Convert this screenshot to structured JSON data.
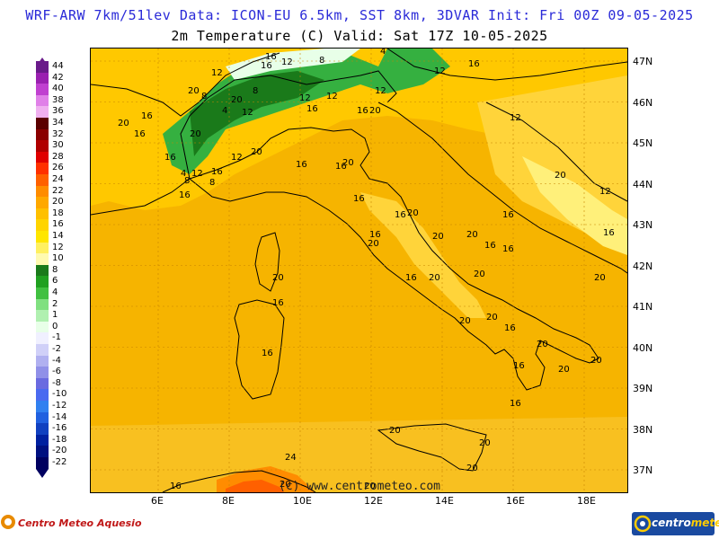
{
  "header": {
    "line1": "WRF-ARW 7km/51lev  Data: ICON-EU 6.5km, SST 8km, 3DVAR  Init: Fri 00Z 09-05-2025",
    "line2": "2m Temperature (C)  Valid: Sat 17Z 10-05-2025"
  },
  "legend": {
    "levels": [
      {
        "label": "44",
        "color": "#6a1a8a"
      },
      {
        "label": "42",
        "color": "#9a20b0"
      },
      {
        "label": "40",
        "color": "#c040d0"
      },
      {
        "label": "38",
        "color": "#e080e8"
      },
      {
        "label": "36",
        "color": "#f0b0f0"
      },
      {
        "label": "34",
        "color": "#5a0000"
      },
      {
        "label": "32",
        "color": "#8a0000"
      },
      {
        "label": "30",
        "color": "#b00000"
      },
      {
        "label": "28",
        "color": "#e00000"
      },
      {
        "label": "26",
        "color": "#ff3000"
      },
      {
        "label": "24",
        "color": "#ff6000"
      },
      {
        "label": "22",
        "color": "#ff8c00"
      },
      {
        "label": "20",
        "color": "#ffa800"
      },
      {
        "label": "18",
        "color": "#ffc000"
      },
      {
        "label": "16",
        "color": "#ffd400"
      },
      {
        "label": "14",
        "color": "#ffe600"
      },
      {
        "label": "12",
        "color": "#fff060"
      },
      {
        "label": "10",
        "color": "#fffab0"
      },
      {
        "label": "8",
        "color": "#1a7a1a"
      },
      {
        "label": "6",
        "color": "#20a020"
      },
      {
        "label": "4",
        "color": "#40c040"
      },
      {
        "label": "2",
        "color": "#80e080"
      },
      {
        "label": "1",
        "color": "#b0f0b0"
      },
      {
        "label": "0",
        "color": "#e8ffe8"
      },
      {
        "label": "-1",
        "color": "#f0f0ff"
      },
      {
        "label": "-2",
        "color": "#d0d0f8"
      },
      {
        "label": "-4",
        "color": "#b0b0f0"
      },
      {
        "label": "-6",
        "color": "#9090e8"
      },
      {
        "label": "-8",
        "color": "#6a6ae0"
      },
      {
        "label": "-10",
        "color": "#4a6af0"
      },
      {
        "label": "-12",
        "color": "#3080f0"
      },
      {
        "label": "-14",
        "color": "#2060e0"
      },
      {
        "label": "-16",
        "color": "#1040c0"
      },
      {
        "label": "-18",
        "color": "#0020a0"
      },
      {
        "label": "-20",
        "color": "#001080"
      },
      {
        "label": "-22",
        "color": "#000060"
      }
    ]
  },
  "latitudes": [
    "47N",
    "46N",
    "45N",
    "44N",
    "43N",
    "42N",
    "41N",
    "40N",
    "39N",
    "38N",
    "37N"
  ],
  "longitudes": [
    "6E",
    "8E",
    "10E",
    "12E",
    "14E",
    "16E",
    "18E"
  ],
  "map_labels": [
    "16",
    "12",
    "8",
    "4",
    "12",
    "16",
    "12",
    "16",
    "20",
    "8",
    "8",
    "4",
    "12",
    "12",
    "12",
    "12",
    "16",
    "16",
    "20",
    "20",
    "16",
    "20",
    "16",
    "20",
    "16",
    "12",
    "16",
    "8",
    "4",
    "12",
    "8",
    "16",
    "20",
    "16",
    "16",
    "20",
    "16",
    "16",
    "20",
    "20",
    "16",
    "16",
    "16",
    "12",
    "20",
    "12",
    "16",
    "20",
    "16",
    "20",
    "20",
    "20",
    "20",
    "16",
    "16",
    "16",
    "20",
    "20",
    "16",
    "20",
    "20",
    "16",
    "20",
    "16",
    "20",
    "20",
    "20",
    "20",
    "24",
    "20",
    "20",
    "16",
    "20"
  ],
  "credit": "(c) www.centrometeo.com",
  "brand_left": "Centro Meteo Aquesio",
  "brand_right_a": "centro",
  "brand_right_b": "meteo",
  "colors": {
    "base_orange": "#f6b400",
    "dark_orange": "#f09a00",
    "light_yellow": "#ffd84a",
    "green": "#22a030",
    "sea": "#f7bb10"
  }
}
